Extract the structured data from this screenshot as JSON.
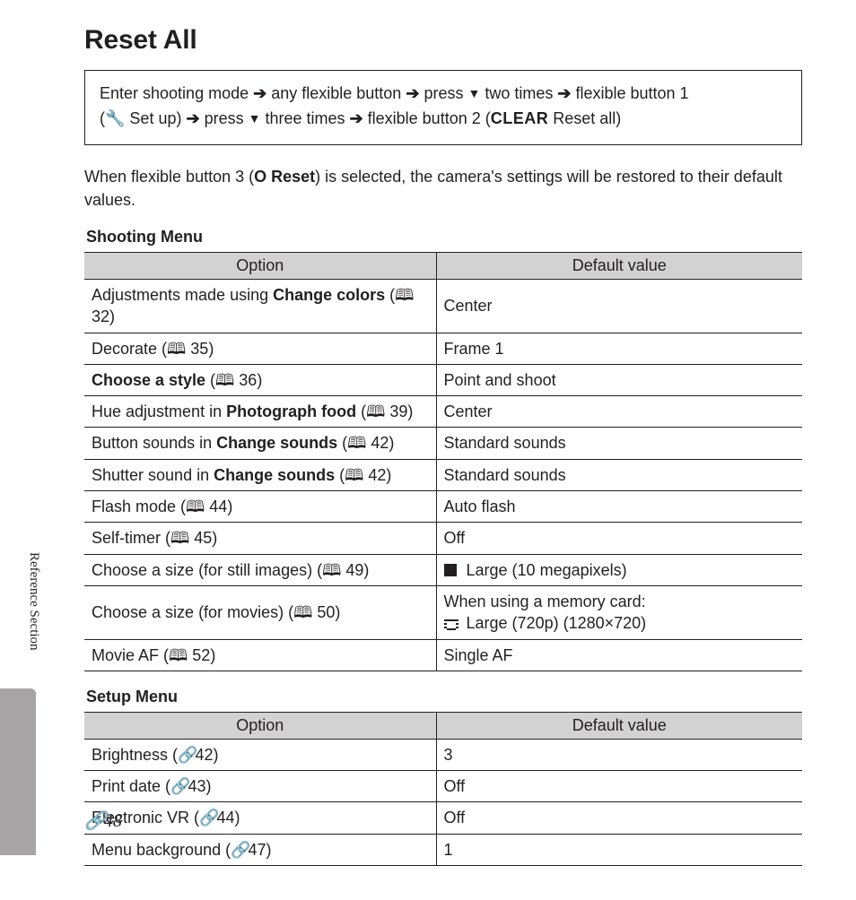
{
  "title": "Reset All",
  "nav": {
    "line1_a": "Enter shooting mode ",
    "line1_b": " any flexible button ",
    "line1_c": " press ",
    "line1_d": " two times ",
    "line1_e": " flexible button 1",
    "line2_a": "(",
    "line2_setup": " Set up) ",
    "line2_b": " press ",
    "line2_c": " three times ",
    "line2_d": " flexible button 2 (",
    "line2_clear": "CLEAR",
    "line2_e": " Reset all)"
  },
  "desc_a": "When flexible button 3 (",
  "desc_reset": "Reset",
  "desc_b": ") is selected, the camera's settings will be restored to their default values.",
  "menus": {
    "shooting": {
      "heading": "Shooting Menu",
      "header_option": "Option",
      "header_default": "Default value",
      "rows": [
        {
          "opt_pre": "Adjustments made using ",
          "opt_b": "Change colors",
          "opt_post": " (",
          "ref": "32",
          "def": "Center"
        },
        {
          "opt_pre": "Decorate (",
          "ref": "35",
          "def": "Frame 1"
        },
        {
          "opt_b": "Choose a style",
          "opt_post": " (",
          "ref": "36",
          "def": "Point and shoot"
        },
        {
          "opt_pre": "Hue adjustment in ",
          "opt_b": "Photograph food",
          "opt_post": " (",
          "ref": "39",
          "def": "Center"
        },
        {
          "opt_pre": "Button sounds in ",
          "opt_b": "Change sounds",
          "opt_post": " (",
          "ref": "42",
          "def": "Standard sounds"
        },
        {
          "opt_pre": "Shutter sound in ",
          "opt_b": "Change sounds",
          "opt_post": " (",
          "ref": "42",
          "def": "Standard sounds"
        },
        {
          "opt_pre": "Flash mode (",
          "ref": "44",
          "def": "Auto flash"
        },
        {
          "opt_pre": "Self-timer (",
          "ref": "45",
          "def": "Off"
        },
        {
          "opt_pre": "Choose a size (for still images) (",
          "ref": "49",
          "def_icon": "sq",
          "def": "Large (10 megapixels)"
        },
        {
          "opt_pre": "Choose a size (for movies) (",
          "ref": "50",
          "def_line1": "When using a memory card:",
          "def_icon": "film",
          "def": "Large (720p) (1280×720)"
        },
        {
          "opt_pre": "Movie AF (",
          "ref": "52",
          "def": "Single AF"
        }
      ]
    },
    "setup": {
      "heading": "Setup Menu",
      "header_option": "Option",
      "header_default": "Default value",
      "rows": [
        {
          "opt_pre": "Brightness (",
          "ref_oo": "42",
          "def": "3"
        },
        {
          "opt_pre": "Print date (",
          "ref_oo": "43",
          "def": "Off"
        },
        {
          "opt_pre": "Electronic VR (",
          "ref_oo": "44",
          "def": "Off"
        },
        {
          "opt_pre": "Menu background (",
          "ref_oo": "47",
          "def": "1"
        }
      ]
    }
  },
  "side_label": "Reference Section",
  "page_number": "48",
  "glyphs": {
    "arrow_right": "➔",
    "down_triangle": "▼",
    "book": "🕮",
    "wrench": "🔧",
    "circle": "O",
    "oo": "🔗"
  },
  "colors": {
    "text": "#231f20",
    "header_bg": "#d3d2d2",
    "tab_bg": "#a6a4a5",
    "page_bg": "#ffffff"
  }
}
